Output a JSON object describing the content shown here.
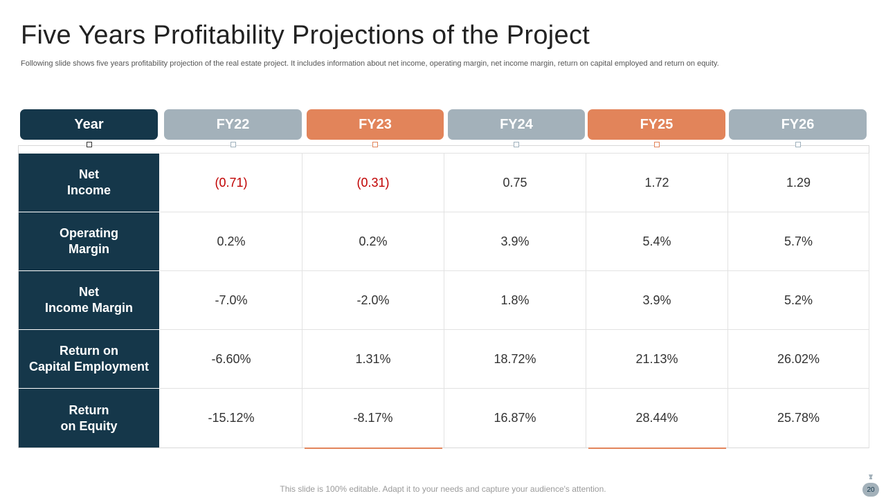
{
  "slide": {
    "title": "Five Years Profitability Projections of the Project",
    "subtitle": "Following slide shows five years profitability projection of the real estate project. It includes information about net income, operating margin, net income margin, return on capital employed and return on equity.",
    "footer_note": "This slide is 100% editable. Adapt it to your needs and capture your audience's attention.",
    "page_number": "20"
  },
  "table": {
    "header_label": "Year",
    "years": [
      "FY22",
      "FY23",
      "FY24",
      "FY25",
      "FY26"
    ],
    "year_styles": [
      "grey",
      "orange",
      "grey",
      "orange",
      "grey"
    ],
    "rows": [
      {
        "label_line1": "Net",
        "label_line2": "Income",
        "values": [
          "(0.71)",
          "(0.31)",
          "0.75",
          "1.72",
          "1.29"
        ],
        "negative": [
          true,
          true,
          false,
          false,
          false
        ]
      },
      {
        "label_line1": "Operating",
        "label_line2": "Margin",
        "values": [
          "0.2%",
          "0.2%",
          "3.9%",
          "5.4%",
          "5.7%"
        ],
        "negative": [
          false,
          false,
          false,
          false,
          false
        ]
      },
      {
        "label_line1": "Net",
        "label_line2": "Income Margin",
        "values": [
          "-7.0%",
          "-2.0%",
          "1.8%",
          "3.9%",
          "5.2%"
        ],
        "negative": [
          false,
          false,
          false,
          false,
          false
        ]
      },
      {
        "label_line1": "Return on",
        "label_line2": "Capital Employment",
        "values": [
          "-6.60%",
          "1.31%",
          "18.72%",
          "21.13%",
          "26.02%"
        ],
        "negative": [
          false,
          false,
          false,
          false,
          false
        ]
      },
      {
        "label_line1": "Return",
        "label_line2": "on Equity",
        "values": [
          "-15.12%",
          "-8.17%",
          "16.87%",
          "28.44%",
          "25.78%"
        ],
        "negative": [
          false,
          false,
          false,
          false,
          false
        ]
      }
    ]
  },
  "colors": {
    "dark_navy": "#15374a",
    "grey_header": "#a3b1ba",
    "orange_header": "#e2845a",
    "negative_value": "#c00000"
  },
  "icons": {
    "page_badge": "money-bag-icon"
  }
}
